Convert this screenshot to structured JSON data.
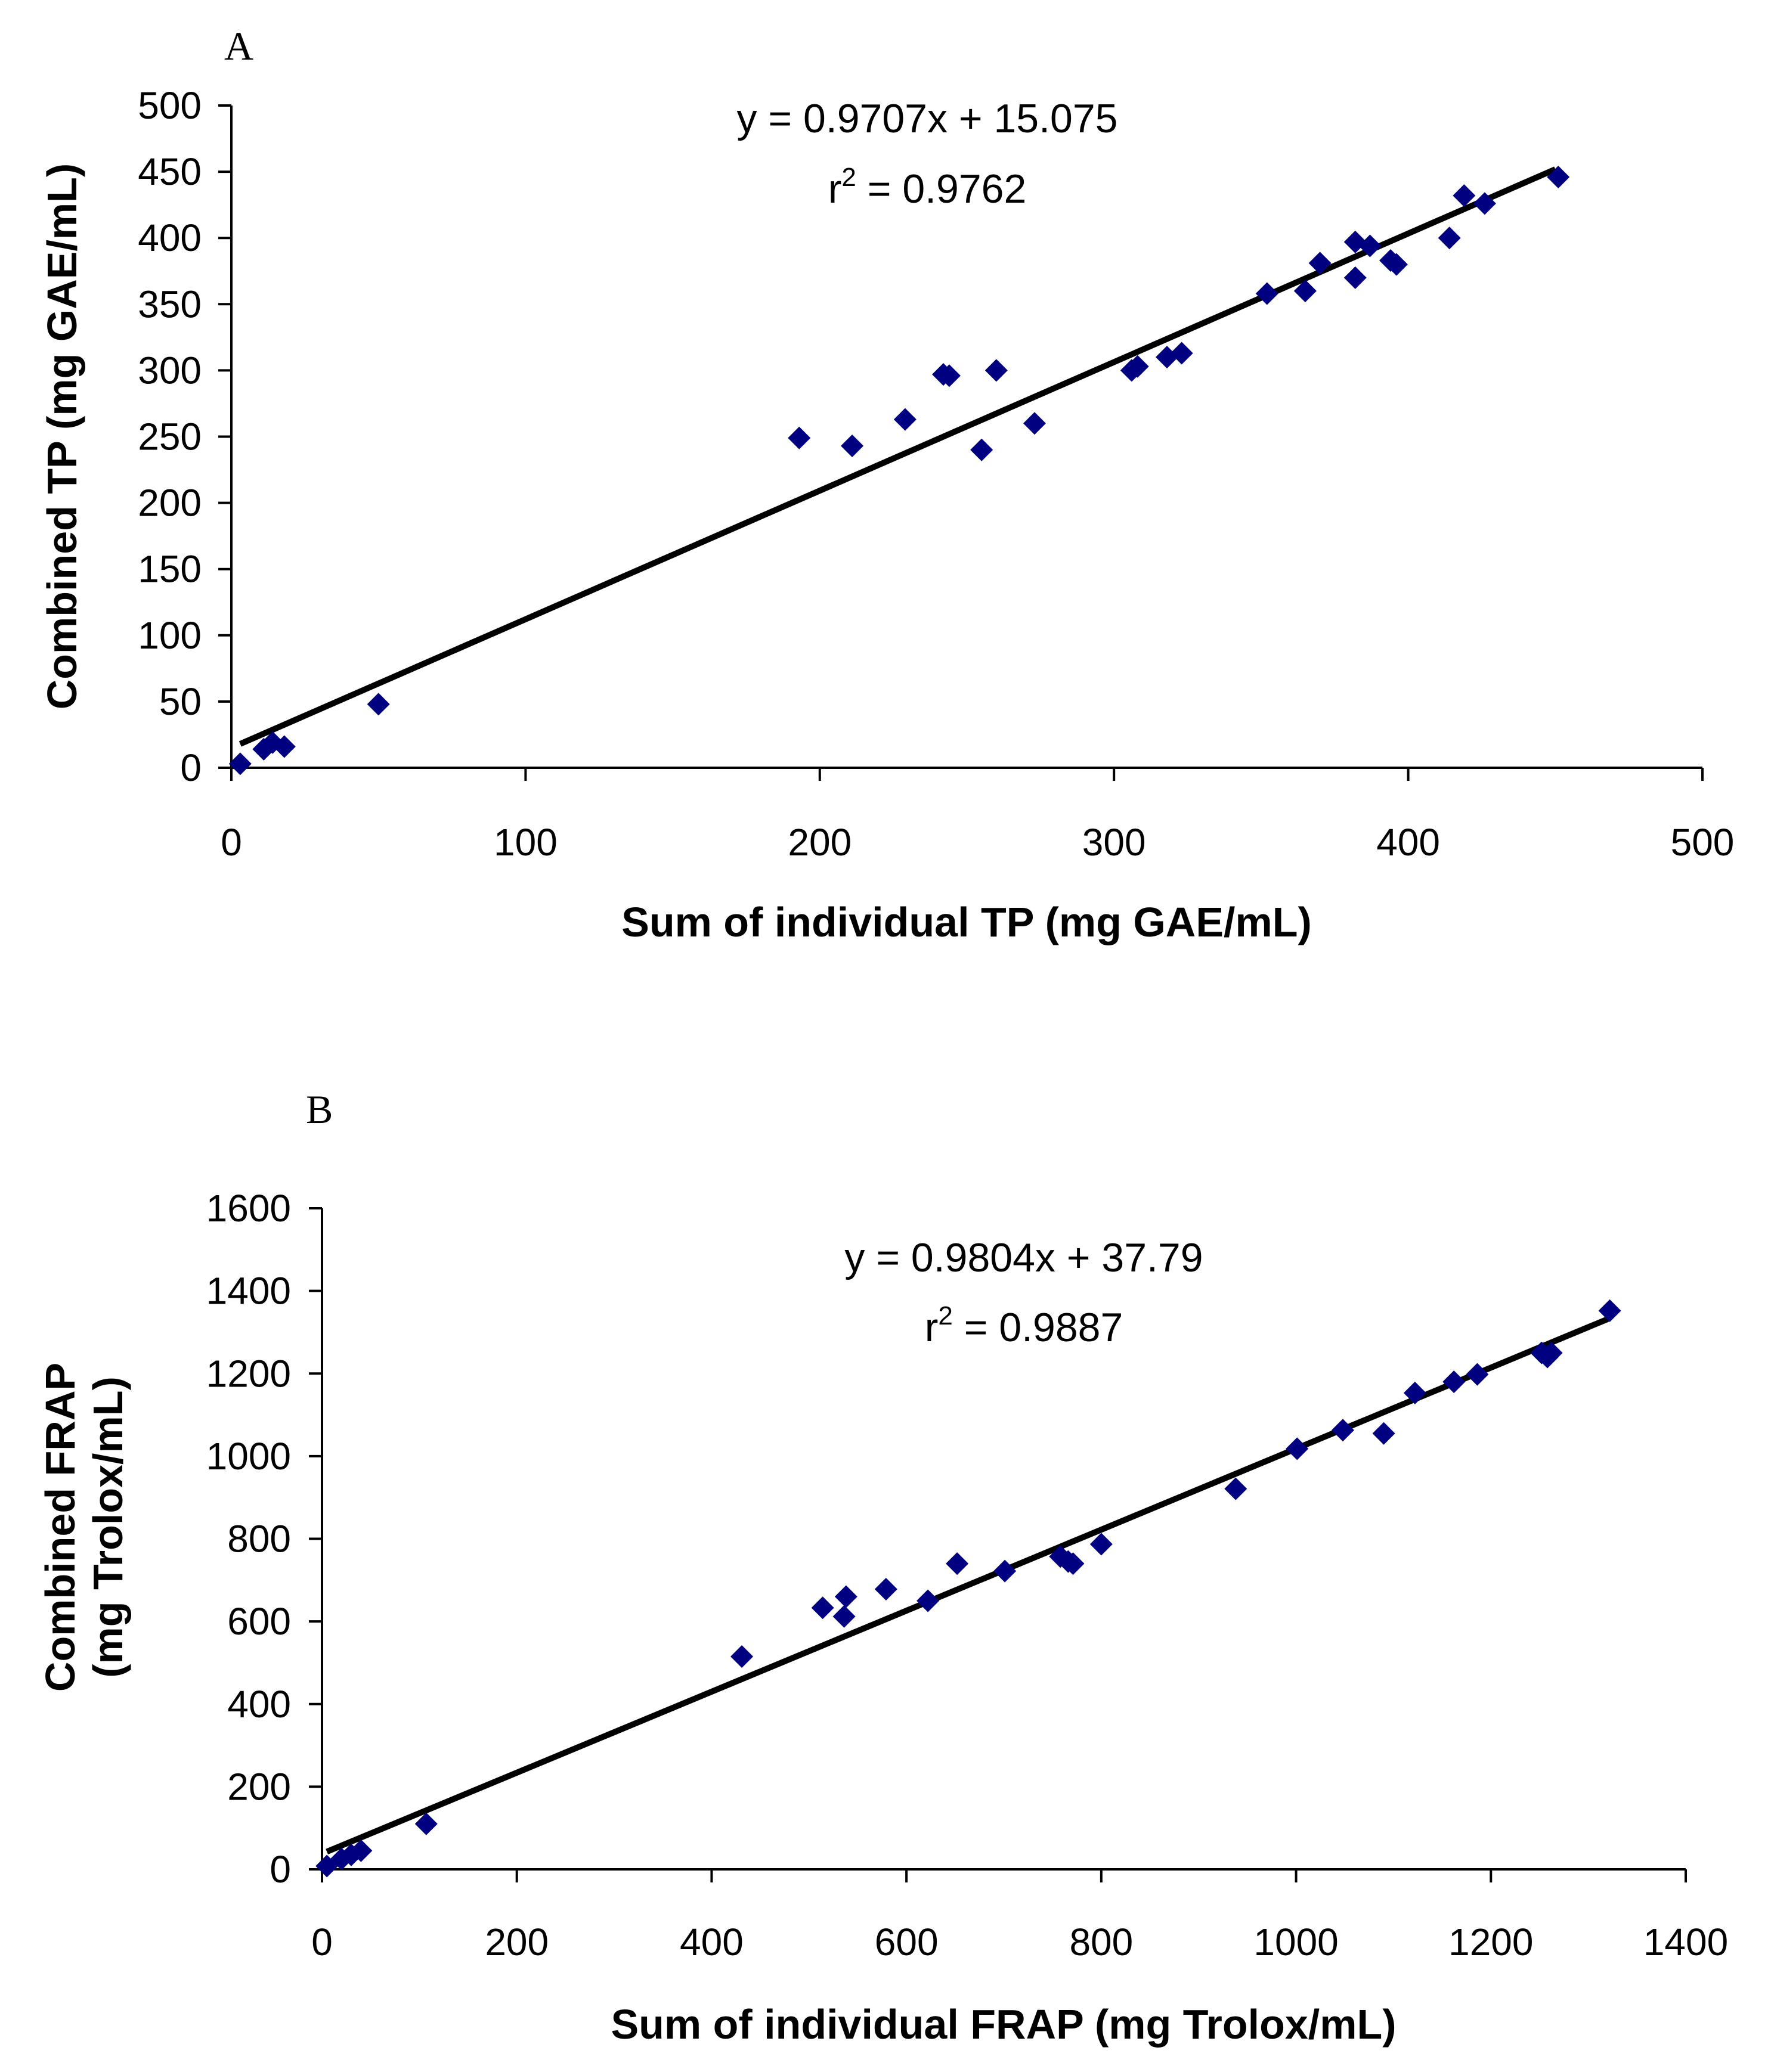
{
  "chart_data": [
    {
      "type": "scatter",
      "panel": "A",
      "xlabel": "Sum of individual TP (mg GAE/mL)",
      "ylabel": "Combined TP (mg GAE/mL)",
      "xlim": [
        0,
        500
      ],
      "ylim": [
        0,
        500
      ],
      "xticks": [
        "0",
        "100",
        "200",
        "300",
        "400",
        "500"
      ],
      "yticks": [
        "0",
        "50",
        "100",
        "150",
        "200",
        "250",
        "300",
        "350",
        "400",
        "450",
        "500"
      ],
      "xtick_values": [
        0,
        100,
        200,
        300,
        400,
        500
      ],
      "ytick_values": [
        0,
        50,
        100,
        150,
        200,
        250,
        300,
        350,
        400,
        450,
        500
      ],
      "equation": "y = 0.9707x + 15.075",
      "r2_prefix": "r",
      "r2_sup": "2",
      "r2_value": " = 0.9762",
      "trendline": {
        "slope": 0.9707,
        "intercept": 15.075,
        "x_range": [
          3,
          450
        ]
      },
      "marker_color": "#000080",
      "points": [
        [
          3,
          3
        ],
        [
          11,
          14
        ],
        [
          14,
          19
        ],
        [
          18,
          16
        ],
        [
          50,
          48
        ],
        [
          193,
          249
        ],
        [
          211,
          243
        ],
        [
          229,
          263
        ],
        [
          242,
          297
        ],
        [
          244,
          296
        ],
        [
          255,
          240
        ],
        [
          260,
          300
        ],
        [
          273,
          260
        ],
        [
          306,
          300
        ],
        [
          308,
          303
        ],
        [
          318,
          310
        ],
        [
          323,
          313
        ],
        [
          352,
          358
        ],
        [
          365,
          360
        ],
        [
          370,
          381
        ],
        [
          382,
          397
        ],
        [
          382,
          370
        ],
        [
          387,
          394
        ],
        [
          394,
          383
        ],
        [
          396,
          380
        ],
        [
          414,
          400
        ],
        [
          419,
          432
        ],
        [
          426,
          426
        ],
        [
          451,
          446
        ]
      ]
    },
    {
      "type": "scatter",
      "panel": "B",
      "xlabel": "Sum of individual FRAP (mg Trolox/mL)",
      "ylabel_line1": "Combined FRAP",
      "ylabel_line2": "(mg Trolox/mL)",
      "xlim": [
        0,
        1400
      ],
      "ylim": [
        0,
        1600
      ],
      "xticks": [
        "0",
        "200",
        "400",
        "600",
        "800",
        "1000",
        "1200",
        "1400"
      ],
      "yticks": [
        "0",
        "200",
        "400",
        "600",
        "800",
        "1000",
        "1200",
        "1400",
        "1600"
      ],
      "xtick_values": [
        0,
        200,
        400,
        600,
        800,
        1000,
        1200,
        1400
      ],
      "ytick_values": [
        0,
        200,
        400,
        600,
        800,
        1000,
        1200,
        1400,
        1600
      ],
      "equation": "y = 0.9804x + 37.79",
      "r2_prefix": "r",
      "r2_sup": "2",
      "r2_value": " = 0.9887",
      "trendline": {
        "slope": 0.9804,
        "intercept": 37.79,
        "x_range": [
          5,
          1320
        ]
      },
      "marker_color": "#000080",
      "points": [
        [
          5,
          8
        ],
        [
          20,
          25
        ],
        [
          30,
          35
        ],
        [
          40,
          45
        ],
        [
          107,
          110
        ],
        [
          431,
          515
        ],
        [
          514,
          633
        ],
        [
          536,
          612
        ],
        [
          538,
          660
        ],
        [
          579,
          678
        ],
        [
          622,
          650
        ],
        [
          652,
          740
        ],
        [
          701,
          722
        ],
        [
          758,
          757
        ],
        [
          766,
          745
        ],
        [
          771,
          740
        ],
        [
          800,
          787
        ],
        [
          938,
          921
        ],
        [
          1001,
          1018
        ],
        [
          1048,
          1063
        ],
        [
          1090,
          1055
        ],
        [
          1122,
          1153
        ],
        [
          1162,
          1180
        ],
        [
          1186,
          1198
        ],
        [
          1252,
          1250
        ],
        [
          1258,
          1240
        ],
        [
          1262,
          1250
        ],
        [
          1322,
          1352
        ]
      ]
    }
  ]
}
